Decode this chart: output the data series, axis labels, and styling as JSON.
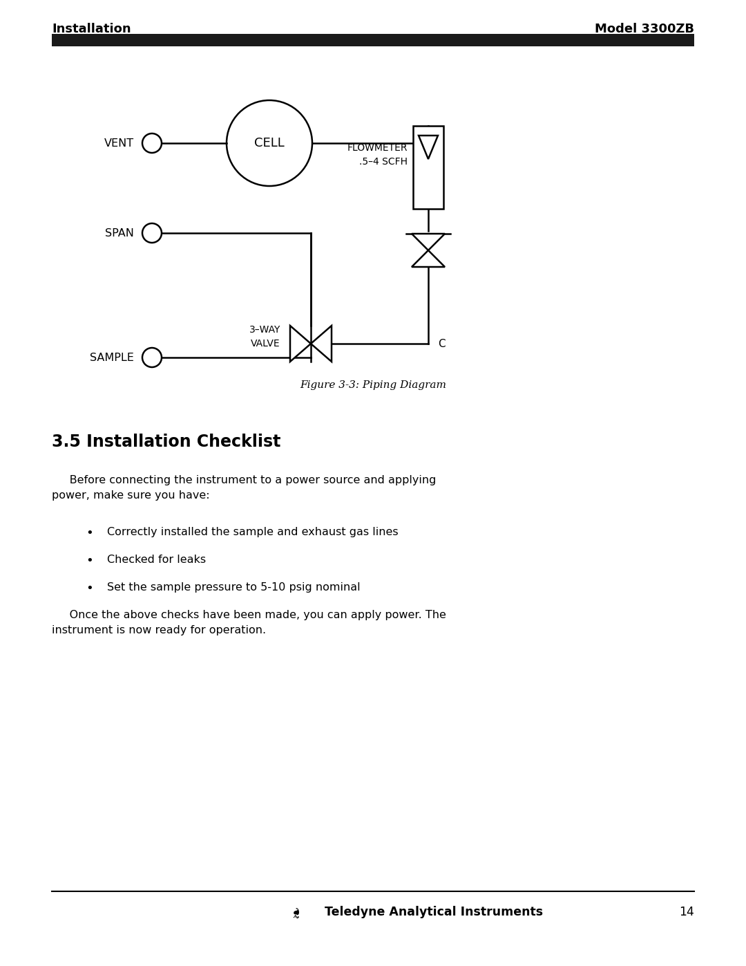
{
  "header_left": "Installation",
  "header_right": "Model 3300ZB",
  "header_bar_color": "#1a1a1a",
  "figure_caption": "Figure 3-3: Piping Diagram",
  "section_title": "3.5 Installation Checklist",
  "para1": "     Before connecting the instrument to a power source and applying\npower, make sure you have:",
  "bullets": [
    "Correctly installed the sample and exhaust gas lines",
    "Checked for leaks",
    "Set the sample pressure to 5-10 psig nominal"
  ],
  "para2": "     Once the above checks have been made, you can apply power. The\ninstrument is now ready for operation.",
  "footer_text": "Teledyne Analytical Instruments",
  "footer_page": "14",
  "bg_color": "#ffffff",
  "text_color": "#000000"
}
